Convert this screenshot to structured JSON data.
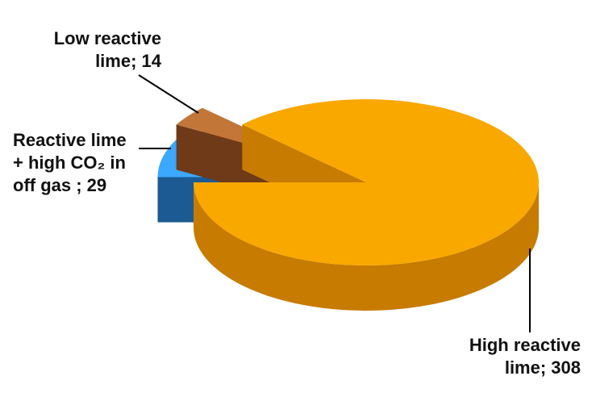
{
  "chart_data": {
    "type": "pie3d",
    "values": [
      308,
      29,
      14
    ],
    "value_labels": [
      "High reactive lime; 308",
      "Reactive lime + high CO₂ in off gas ; 29",
      "Low reactive lime; 14"
    ],
    "colors": [
      "#f9a800",
      "#3aa8ff",
      "#c27638"
    ],
    "side_colors": [
      "#c77b00",
      "#1b5a93",
      "#6e3a18"
    ]
  }
}
